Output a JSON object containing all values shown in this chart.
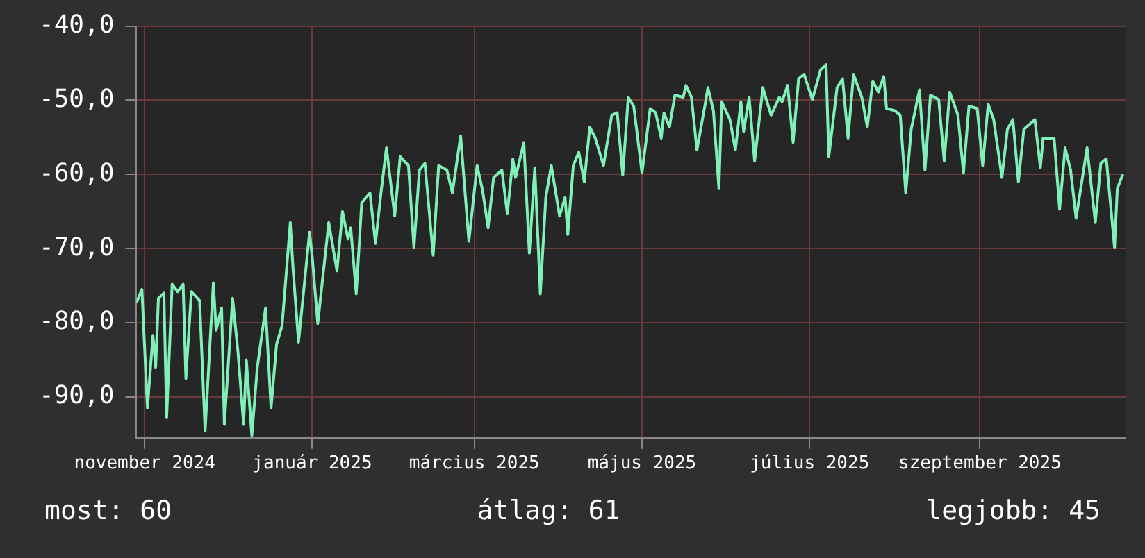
{
  "chart_data": {
    "type": "line",
    "xlim": [
      "2024-10-29",
      "2025-10-24"
    ],
    "ylim": [
      -95.5,
      -40
    ],
    "yticks": [
      {
        "value": -40,
        "label": "-40,0"
      },
      {
        "value": -50,
        "label": "-50,0"
      },
      {
        "value": -60,
        "label": "-60,0"
      },
      {
        "value": -70,
        "label": "-70,0"
      },
      {
        "value": -80,
        "label": "-80,0"
      },
      {
        "value": -90,
        "label": "-90,0"
      }
    ],
    "xticks": [
      {
        "value": "2024-11-01",
        "label": "november 2024"
      },
      {
        "value": "2025-01-01",
        "label": "január 2025"
      },
      {
        "value": "2025-03-01",
        "label": "március 2025"
      },
      {
        "value": "2025-05-01",
        "label": "május 2025"
      },
      {
        "value": "2025-07-01",
        "label": "július 2025"
      },
      {
        "value": "2025-09-01",
        "label": "szeptember 2025"
      }
    ],
    "grid": true,
    "legend": false,
    "marker": "none",
    "line_style": "solid",
    "annotations": [
      "most: 60",
      "átlag: 61",
      "legjobb: 45"
    ],
    "series": [
      {
        "color": "#7ff0b8",
        "x": [
          "2024-10-29",
          "2024-10-31",
          "2024-11-02",
          "2024-11-04",
          "2024-11-05",
          "2024-11-06",
          "2024-11-08",
          "2024-11-09",
          "2024-11-11",
          "2024-11-13",
          "2024-11-15",
          "2024-11-16",
          "2024-11-18",
          "2024-11-21",
          "2024-11-23",
          "2024-11-26",
          "2024-11-27",
          "2024-11-29",
          "2024-11-30",
          "2024-12-03",
          "2024-12-05",
          "2024-12-07",
          "2024-12-08",
          "2024-12-10",
          "2024-12-12",
          "2024-12-15",
          "2024-12-17",
          "2024-12-19",
          "2024-12-21",
          "2024-12-24",
          "2024-12-25",
          "2024-12-27",
          "2024-12-31",
          "2025-01-01",
          "2025-01-03",
          "2025-01-07",
          "2025-01-10",
          "2025-01-12",
          "2025-01-14",
          "2025-01-15",
          "2025-01-17",
          "2025-01-19",
          "2025-01-22",
          "2025-01-24",
          "2025-01-26",
          "2025-01-28",
          "2025-01-31",
          "2025-02-02",
          "2025-02-05",
          "2025-02-07",
          "2025-02-09",
          "2025-02-11",
          "2025-02-14",
          "2025-02-16",
          "2025-02-19",
          "2025-02-21",
          "2025-02-24",
          "2025-02-27",
          "2025-03-02",
          "2025-03-04",
          "2025-03-06",
          "2025-03-08",
          "2025-03-11",
          "2025-03-13",
          "2025-03-15",
          "2025-03-16",
          "2025-03-19",
          "2025-03-21",
          "2025-03-23",
          "2025-03-25",
          "2025-03-27",
          "2025-03-29",
          "2025-04-01",
          "2025-04-03",
          "2025-04-04",
          "2025-04-06",
          "2025-04-08",
          "2025-04-10",
          "2025-04-12",
          "2025-04-14",
          "2025-04-17",
          "2025-04-20",
          "2025-04-22",
          "2025-04-24",
          "2025-04-26",
          "2025-04-28",
          "2025-05-01",
          "2025-05-04",
          "2025-05-06",
          "2025-05-08",
          "2025-05-09",
          "2025-05-11",
          "2025-05-13",
          "2025-05-16",
          "2025-05-17",
          "2025-05-19",
          "2025-05-21",
          "2025-05-24",
          "2025-05-25",
          "2025-05-27",
          "2025-05-29",
          "2025-05-30",
          "2025-06-02",
          "2025-06-04",
          "2025-06-06",
          "2025-06-07",
          "2025-06-09",
          "2025-06-11",
          "2025-06-14",
          "2025-06-15",
          "2025-06-17",
          "2025-06-20",
          "2025-06-21",
          "2025-06-23",
          "2025-06-25",
          "2025-06-27",
          "2025-06-29",
          "2025-07-02",
          "2025-07-05",
          "2025-07-07",
          "2025-07-08",
          "2025-07-11",
          "2025-07-13",
          "2025-07-15",
          "2025-07-17",
          "2025-07-20",
          "2025-07-22",
          "2025-07-24",
          "2025-07-26",
          "2025-07-28",
          "2025-07-29",
          "2025-08-01",
          "2025-08-03",
          "2025-08-05",
          "2025-08-07",
          "2025-08-10",
          "2025-08-12",
          "2025-08-14",
          "2025-08-17",
          "2025-08-19",
          "2025-08-21",
          "2025-08-24",
          "2025-08-26",
          "2025-08-28",
          "2025-08-31",
          "2025-09-02",
          "2025-09-04",
          "2025-09-06",
          "2025-09-09",
          "2025-09-11",
          "2025-09-13",
          "2025-09-15",
          "2025-09-17",
          "2025-09-21",
          "2025-09-23",
          "2025-09-24",
          "2025-09-28",
          "2025-09-30",
          "2025-10-02",
          "2025-10-04",
          "2025-10-06",
          "2025-10-09",
          "2025-10-10",
          "2025-10-13",
          "2025-10-15",
          "2025-10-17",
          "2025-10-20",
          "2025-10-21",
          "2025-10-23"
        ],
        "values": [
          -77.3,
          -75.5,
          -91.5,
          -81.7,
          -86,
          -76.7,
          -76,
          -92.8,
          -74.8,
          -75.8,
          -74.8,
          -87.5,
          -75.8,
          -77,
          -94.6,
          -74.6,
          -81,
          -78,
          -93.7,
          -76.7,
          -84.1,
          -93.7,
          -85,
          -95.2,
          -86,
          -78,
          -91.5,
          -82.9,
          -80.4,
          -66.5,
          -72.7,
          -82.6,
          -67.8,
          -71.2,
          -80.1,
          -66.5,
          -73,
          -65,
          -68.7,
          -67.2,
          -76.1,
          -63.8,
          -62.5,
          -69.3,
          -62.5,
          -56.4,
          -65.6,
          -57.6,
          -58.8,
          -69.9,
          -59.4,
          -58.5,
          -70.9,
          -58.8,
          -59.4,
          -62.5,
          -54.8,
          -69,
          -58.8,
          -62.2,
          -67.2,
          -60.4,
          -59.4,
          -65.3,
          -57.9,
          -60.4,
          -55.7,
          -70.6,
          -59.1,
          -76.1,
          -63.1,
          -58.8,
          -65.6,
          -63.1,
          -68.1,
          -58.8,
          -57,
          -61,
          -53.6,
          -55.1,
          -58.8,
          -52,
          -51.7,
          -60.1,
          -49.6,
          -50.8,
          -59.8,
          -51.1,
          -51.7,
          -55.1,
          -51.7,
          -53.6,
          -49.3,
          -49.6,
          -48,
          -49.6,
          -56.7,
          -50.5,
          -48.3,
          -51.4,
          -61.9,
          -50.2,
          -52.6,
          -56.7,
          -50.2,
          -54.2,
          -49.6,
          -58.2,
          -48.3,
          -49.6,
          -52,
          -49.6,
          -50.2,
          -48,
          -55.7,
          -47.1,
          -46.5,
          -49.9,
          -45.9,
          -45.2,
          -57.6,
          -48.3,
          -47.1,
          -55.1,
          -46.5,
          -49.6,
          -53.6,
          -47.4,
          -48.9,
          -46.8,
          -51.1,
          -51.4,
          -52,
          -62.5,
          -53.9,
          -48.6,
          -59.4,
          -49.3,
          -49.9,
          -58.2,
          -48.9,
          -52,
          -59.8,
          -50.8,
          -51.1,
          -58.8,
          -50.5,
          -52.6,
          -60.4,
          -53.9,
          -52.6,
          -61,
          -53.9,
          -52.6,
          -59.1,
          -55.1,
          -55.1,
          -64.7,
          -56.4,
          -59.4,
          -65.9,
          -58.8,
          -56.4,
          -66.5,
          -58.5,
          -57.9,
          -69.9,
          -61.9,
          -60
        ]
      }
    ]
  }
}
